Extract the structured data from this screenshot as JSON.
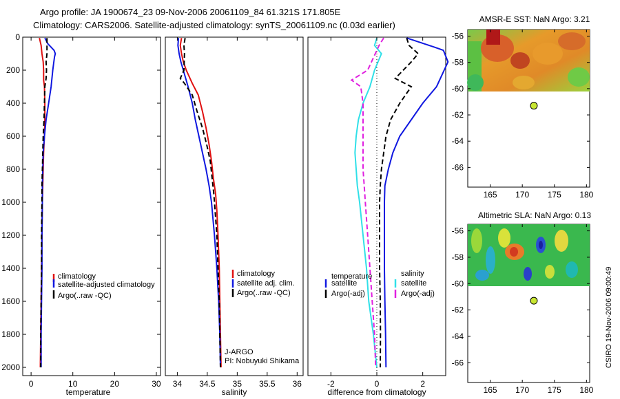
{
  "title": {
    "line1": "Argo profile: JA 1900674_23 09-Nov-2006 20061109_84 61.321S 171.805E",
    "line2": "Climatology: CARS2006. Satellite-adjusted climatology: synTS_20061109.nc (0.03d earlier)"
  },
  "side_label": "CSIRO 19-Nov-2006 09:00:49",
  "colors": {
    "climatology": "#e01010",
    "satellite": "#1018e0",
    "argo": "#000000",
    "satellite_sal": "#30e0e8",
    "argo_sal": "#e020e0"
  },
  "chart_data": [
    {
      "type": "line",
      "xlabel": "temperature",
      "xlim": [
        -2,
        31
      ],
      "ylim": [
        2050,
        0
      ],
      "xticks": [
        0,
        10,
        20,
        30
      ],
      "yticks": [
        0,
        200,
        400,
        600,
        800,
        1000,
        1200,
        1400,
        1600,
        1800,
        2000
      ],
      "legend": {
        "entries": [
          "climatology",
          "satellite-adjusted climatology",
          "Argo(..raw -QC)"
        ],
        "placement": "lower-right"
      },
      "series": [
        {
          "name": "climatology",
          "color": "#e01010",
          "style": "solid",
          "points": [
            [
              2.0,
              5
            ],
            [
              2.4,
              50
            ],
            [
              2.6,
              100
            ],
            [
              2.9,
              150
            ],
            [
              3.0,
              200
            ],
            [
              3.0,
              260
            ],
            [
              3.2,
              300
            ],
            [
              3.3,
              400
            ],
            [
              3.3,
              500
            ],
            [
              3.2,
              600
            ],
            [
              3.0,
              700
            ],
            [
              2.9,
              800
            ],
            [
              2.8,
              900
            ],
            [
              2.7,
              1000
            ],
            [
              2.6,
              1200
            ],
            [
              2.5,
              1400
            ],
            [
              2.4,
              1600
            ],
            [
              2.3,
              1800
            ],
            [
              2.2,
              2000
            ]
          ]
        },
        {
          "name": "satellite-adjusted climatology",
          "color": "#1018e0",
          "style": "solid",
          "points": [
            [
              3.3,
              5
            ],
            [
              4.0,
              40
            ],
            [
              5.5,
              80
            ],
            [
              5.8,
              100
            ],
            [
              5.6,
              120
            ],
            [
              5.2,
              200
            ],
            [
              4.8,
              300
            ],
            [
              4.2,
              400
            ],
            [
              3.6,
              500
            ],
            [
              3.2,
              600
            ],
            [
              2.9,
              700
            ],
            [
              2.8,
              800
            ],
            [
              2.7,
              900
            ],
            [
              2.7,
              1000
            ],
            [
              2.6,
              1200
            ],
            [
              2.6,
              1400
            ],
            [
              2.5,
              1600
            ],
            [
              2.4,
              1800
            ],
            [
              2.4,
              2000
            ]
          ]
        },
        {
          "name": "Argo(..raw -QC)",
          "color": "#000000",
          "style": "dashed",
          "points": [
            [
              3.8,
              5
            ],
            [
              3.8,
              50
            ],
            [
              3.8,
              100
            ],
            [
              3.6,
              150
            ],
            [
              3.7,
              200
            ],
            [
              3.6,
              250
            ],
            [
              3.3,
              300
            ],
            [
              3.2,
              400
            ],
            [
              3.1,
              500
            ],
            [
              2.9,
              600
            ],
            [
              2.8,
              700
            ],
            [
              2.7,
              800
            ],
            [
              2.6,
              900
            ],
            [
              2.6,
              1000
            ],
            [
              2.5,
              1200
            ],
            [
              2.5,
              1400
            ],
            [
              2.4,
              1600
            ],
            [
              2.3,
              1800
            ],
            [
              2.3,
              2000
            ]
          ]
        }
      ],
      "annotations": []
    },
    {
      "type": "line",
      "xlabel": "salinity",
      "xlim": [
        33.8,
        36.1
      ],
      "ylim": [
        2050,
        0
      ],
      "xticks": [
        34,
        34.5,
        35,
        35.5,
        36
      ],
      "yticks": [],
      "legend": {
        "entries": [
          "climatology",
          "satellite adj. clim.",
          "Argo(..raw -QC)"
        ],
        "placement": "lower-right"
      },
      "series": [
        {
          "name": "climatology",
          "color": "#e01010",
          "style": "solid",
          "points": [
            [
              34.07,
              5
            ],
            [
              34.05,
              50
            ],
            [
              34.07,
              100
            ],
            [
              34.1,
              150
            ],
            [
              34.15,
              200
            ],
            [
              34.25,
              280
            ],
            [
              34.35,
              350
            ],
            [
              34.42,
              450
            ],
            [
              34.48,
              550
            ],
            [
              34.53,
              650
            ],
            [
              34.57,
              750
            ],
            [
              34.6,
              850
            ],
            [
              34.64,
              950
            ],
            [
              34.66,
              1050
            ],
            [
              34.68,
              1200
            ],
            [
              34.7,
              1400
            ],
            [
              34.71,
              1600
            ],
            [
              34.72,
              1800
            ],
            [
              34.73,
              2000
            ]
          ]
        },
        {
          "name": "satellite adj. clim.",
          "color": "#1018e0",
          "style": "solid",
          "points": [
            [
              34.02,
              5
            ],
            [
              34.01,
              50
            ],
            [
              34.03,
              100
            ],
            [
              34.06,
              150
            ],
            [
              34.1,
              200
            ],
            [
              34.18,
              300
            ],
            [
              34.25,
              400
            ],
            [
              34.3,
              500
            ],
            [
              34.36,
              600
            ],
            [
              34.42,
              700
            ],
            [
              34.48,
              800
            ],
            [
              34.53,
              900
            ],
            [
              34.57,
              1000
            ],
            [
              34.62,
              1200
            ],
            [
              34.66,
              1400
            ],
            [
              34.69,
              1600
            ],
            [
              34.71,
              1800
            ],
            [
              34.72,
              2000
            ]
          ]
        },
        {
          "name": "Argo(..raw -QC)",
          "color": "#000000",
          "style": "dashed",
          "points": [
            [
              34.13,
              5
            ],
            [
              34.11,
              50
            ],
            [
              34.12,
              100
            ],
            [
              34.11,
              200
            ],
            [
              34.05,
              250
            ],
            [
              34.12,
              280
            ],
            [
              34.25,
              350
            ],
            [
              34.33,
              450
            ],
            [
              34.42,
              550
            ],
            [
              34.49,
              650
            ],
            [
              34.55,
              750
            ],
            [
              34.58,
              850
            ],
            [
              34.61,
              950
            ],
            [
              34.63,
              1050
            ],
            [
              34.66,
              1200
            ],
            [
              34.68,
              1400
            ],
            [
              34.7,
              1600
            ],
            [
              34.71,
              1800
            ],
            [
              34.72,
              2000
            ]
          ]
        }
      ],
      "annotations": [
        "J-ARGO",
        "PI: Nobuyuki Shikama"
      ]
    },
    {
      "type": "line",
      "xlabel": "difference from climatology",
      "xlim": [
        -3,
        3
      ],
      "ylim": [
        2050,
        0
      ],
      "xticks": [
        -2,
        0,
        2
      ],
      "yticks": [],
      "legend": {
        "groups": [
          {
            "title": "temperature",
            "entries": [
              "satellite",
              "Argo(-adj)"
            ]
          },
          {
            "title": "salinity",
            "entries": [
              "satellite",
              "Argo(-adj)"
            ]
          }
        ],
        "placement": "lower-center"
      },
      "series": [
        {
          "name": "temperature satellite",
          "color": "#1018e0",
          "style": "solid",
          "points": [
            [
              1.3,
              5
            ],
            [
              2.5,
              60
            ],
            [
              2.9,
              80
            ],
            [
              3.1,
              150
            ],
            [
              2.6,
              300
            ],
            [
              2.0,
              400
            ],
            [
              1.5,
              500
            ],
            [
              1.0,
              600
            ],
            [
              0.7,
              700
            ],
            [
              0.5,
              800
            ],
            [
              0.35,
              900
            ],
            [
              0.33,
              1000
            ],
            [
              0.33,
              1200
            ],
            [
              0.33,
              1400
            ],
            [
              0.35,
              1600
            ],
            [
              0.38,
              1800
            ],
            [
              0.4,
              2000
            ]
          ]
        },
        {
          "name": "temperature Argo(-adj)",
          "color": "#000000",
          "style": "dashed",
          "points": [
            [
              1.3,
              5
            ],
            [
              1.4,
              50
            ],
            [
              1.8,
              100
            ],
            [
              1.5,
              150
            ],
            [
              0.8,
              250
            ],
            [
              1.5,
              300
            ],
            [
              1.0,
              400
            ],
            [
              0.6,
              500
            ],
            [
              0.4,
              600
            ],
            [
              0.3,
              700
            ],
            [
              0.2,
              800
            ],
            [
              0.15,
              900
            ],
            [
              0.12,
              1000
            ],
            [
              0.12,
              1200
            ],
            [
              0.12,
              1400
            ],
            [
              0.15,
              1600
            ],
            [
              0.16,
              1800
            ],
            [
              0.15,
              2000
            ]
          ]
        },
        {
          "name": "salinity satellite",
          "color": "#30e0e8",
          "style": "solid",
          "points": [
            [
              0.0,
              5
            ],
            [
              -0.1,
              50
            ],
            [
              0.2,
              100
            ],
            [
              -0.1,
              200
            ],
            [
              -0.3,
              300
            ],
            [
              -0.6,
              400
            ],
            [
              -0.8,
              500
            ],
            [
              -0.9,
              600
            ],
            [
              -0.95,
              700
            ],
            [
              -0.9,
              800
            ],
            [
              -0.85,
              900
            ],
            [
              -0.75,
              1000
            ],
            [
              -0.6,
              1200
            ],
            [
              -0.45,
              1400
            ],
            [
              -0.35,
              1600
            ],
            [
              -0.15,
              1800
            ],
            [
              0.0,
              2000
            ]
          ]
        },
        {
          "name": "salinity Argo(-adj)",
          "color": "#e020e0",
          "style": "dashed",
          "points": [
            [
              0.3,
              5
            ],
            [
              0.1,
              50
            ],
            [
              -0.4,
              200
            ],
            [
              -1.1,
              260
            ],
            [
              -0.7,
              300
            ],
            [
              -0.6,
              400
            ],
            [
              -0.6,
              500
            ],
            [
              -0.6,
              600
            ],
            [
              -0.6,
              700
            ],
            [
              -0.6,
              800
            ],
            [
              -0.55,
              900
            ],
            [
              -0.5,
              1000
            ],
            [
              -0.4,
              1200
            ],
            [
              -0.3,
              1400
            ],
            [
              -0.2,
              1600
            ],
            [
              -0.1,
              1800
            ],
            [
              -0.05,
              2000
            ]
          ]
        }
      ],
      "annotations": []
    },
    {
      "type": "heatmap",
      "title": "AMSR-E SST: NaN Argo: 3.21",
      "xlim": [
        161.5,
        180.5
      ],
      "ylim": [
        -67.5,
        -55.5
      ],
      "xticks": [
        165,
        170,
        175,
        180
      ],
      "yticks": [
        -56,
        -58,
        -60,
        -62,
        -64,
        -66
      ],
      "data_extent": {
        "lon": [
          161.5,
          180
        ],
        "lat": [
          -60.2,
          -55.7
        ]
      },
      "marker": {
        "lon": 171.8,
        "lat": -61.3,
        "color": "#c8e632"
      }
    },
    {
      "type": "heatmap",
      "title": "Altimetric SLA: NaN Argo: 0.13",
      "xlim": [
        161.5,
        180.5
      ],
      "ylim": [
        -67.5,
        -55.5
      ],
      "xticks": [
        165,
        170,
        175,
        180
      ],
      "yticks": [
        -56,
        -58,
        -60,
        -62,
        -64,
        -66
      ],
      "data_extent": {
        "lon": [
          161.5,
          180
        ],
        "lat": [
          -60.2,
          -55.7
        ]
      },
      "marker": {
        "lon": 171.8,
        "lat": -61.3,
        "color": "#c8e632"
      }
    }
  ]
}
